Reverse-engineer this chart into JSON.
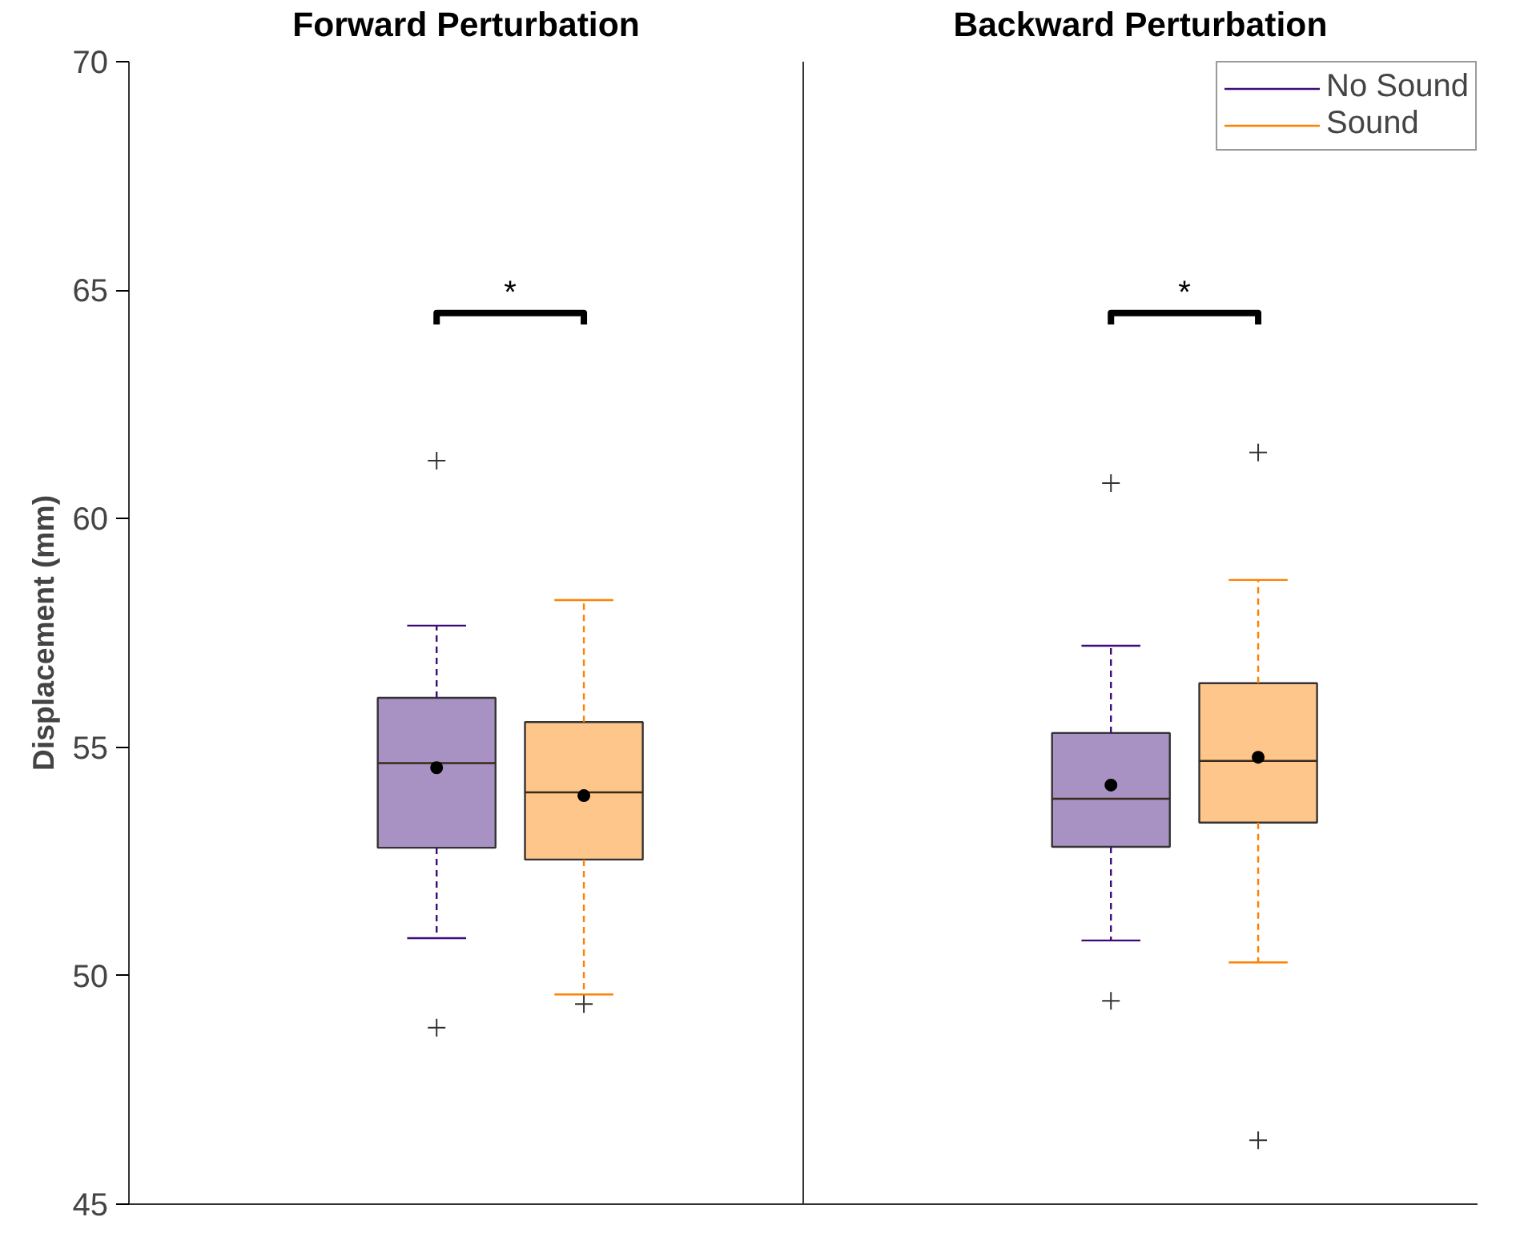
{
  "chart_data": {
    "type": "box",
    "ylabel": "Displacement (mm)",
    "categories": [
      "Forward Perturbation",
      "Backward Perturbation"
    ],
    "ylim": [
      45,
      70
    ],
    "yticks": [
      45,
      50,
      55,
      60,
      65,
      70
    ],
    "grid": false,
    "legend": "top right",
    "annotations": [
      "*",
      "*"
    ],
    "series": [
      {
        "name": "No Sound",
        "color": "#3d0a7a",
        "boxes": [
          {
            "low": 50.82,
            "q1": 52.8,
            "median": 54.65,
            "q3": 56.08,
            "high": 57.66,
            "mean": 54.55,
            "outliers": [
              61.27,
              48.86
            ]
          },
          {
            "low": 50.77,
            "q1": 52.82,
            "median": 53.87,
            "q3": 55.31,
            "high": 57.22,
            "mean": 54.17,
            "outliers": [
              60.78,
              49.45
            ]
          }
        ]
      },
      {
        "name": "Sound",
        "color": "#ff8000",
        "boxes": [
          {
            "low": 49.59,
            "q1": 52.54,
            "median": 54.01,
            "q3": 55.55,
            "high": 58.22,
            "mean": 53.94,
            "outliers": [
              49.38
            ]
          },
          {
            "low": 50.29,
            "q1": 53.35,
            "median": 54.7,
            "q3": 56.4,
            "high": 58.66,
            "mean": 54.78,
            "outliers": [
              61.45,
              46.4
            ]
          }
        ]
      }
    ]
  }
}
